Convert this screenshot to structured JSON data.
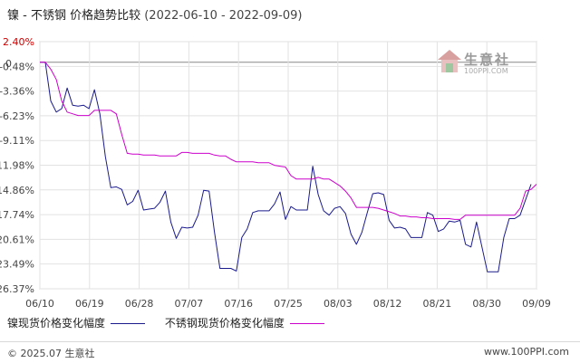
{
  "title": {
    "main": "镍 - 不锈钢 价格趋势比较",
    "range": "(2022-06-10 - 2022-09-09)"
  },
  "legend": {
    "series1": "镍现货价格变化幅度",
    "series2": "不锈钢现货价格变化幅度"
  },
  "watermark": {
    "text": "生意社",
    "url": "100PPI.COM"
  },
  "footer": {
    "left": "© 2025.07 生意社",
    "right": "www.100PPI.com"
  },
  "colors": {
    "nickel": "#1a1a8c",
    "stainless": "#cc00cc",
    "top_tick": "#cc0000",
    "grid": "#e2e2e2"
  },
  "chart_data": {
    "type": "line",
    "title": "镍 - 不锈钢 价格趋势比较",
    "zero_label": "0",
    "y_ticks": [
      "2.40%",
      "-0.48%",
      "-3.36%",
      "-6.23%",
      "-9.11%",
      "-11.98%",
      "-14.86%",
      "-17.74%",
      "-20.61%",
      "-23.49%",
      "-26.37%"
    ],
    "y_tick_values": [
      2.4,
      -0.48,
      -3.36,
      -6.23,
      -9.11,
      -11.98,
      -14.86,
      -17.74,
      -20.61,
      -23.49,
      -26.37
    ],
    "ylim": [
      -26.37,
      2.4
    ],
    "x_labels": [
      "06/10",
      "06/19",
      "06/28",
      "07/07",
      "07/16",
      "07/25",
      "08/03",
      "08/12",
      "08/21",
      "08/30",
      "09/09"
    ],
    "x_range_days": [
      0,
      91
    ],
    "grid": true,
    "legend_position": "bottom",
    "series": [
      {
        "name": "镍现货价格变化幅度",
        "points": [
          [
            0,
            0
          ],
          [
            1,
            0
          ],
          [
            2,
            -4.5
          ],
          [
            3,
            -5.8
          ],
          [
            4,
            -5.4
          ],
          [
            5,
            -3.0
          ],
          [
            6,
            -5.0
          ],
          [
            7,
            -5.1
          ],
          [
            8,
            -5.0
          ],
          [
            9,
            -5.4
          ],
          [
            10,
            -3.2
          ],
          [
            11,
            -6.0
          ],
          [
            12,
            -11.0
          ],
          [
            13,
            -14.6
          ],
          [
            14,
            -14.5
          ],
          [
            15,
            -14.8
          ],
          [
            16,
            -16.6
          ],
          [
            17,
            -16.2
          ],
          [
            18,
            -14.9
          ],
          [
            19,
            -17.2
          ],
          [
            20,
            -17.1
          ],
          [
            21,
            -17.0
          ],
          [
            22,
            -16.3
          ],
          [
            23,
            -15.0
          ],
          [
            24,
            -18.6
          ],
          [
            25,
            -20.5
          ],
          [
            26,
            -19.2
          ],
          [
            27,
            -19.3
          ],
          [
            28,
            -19.2
          ],
          [
            29,
            -17.8
          ],
          [
            30,
            -14.9
          ],
          [
            31,
            -15.0
          ],
          [
            32,
            -19.8
          ],
          [
            33,
            -24.0
          ],
          [
            34,
            -24.0
          ],
          [
            35,
            -24.0
          ],
          [
            36,
            -24.3
          ],
          [
            37,
            -20.4
          ],
          [
            38,
            -19.4
          ],
          [
            39,
            -17.5
          ],
          [
            40,
            -17.3
          ],
          [
            41,
            -17.3
          ],
          [
            42,
            -17.3
          ],
          [
            43,
            -16.5
          ],
          [
            44,
            -15.1
          ],
          [
            45,
            -18.3
          ],
          [
            46,
            -16.8
          ],
          [
            47,
            -17.2
          ],
          [
            48,
            -17.2
          ],
          [
            49,
            -17.2
          ],
          [
            50,
            -12.1
          ],
          [
            51,
            -15.4
          ],
          [
            52,
            -17.3
          ],
          [
            53,
            -17.8
          ],
          [
            54,
            -17.0
          ],
          [
            55,
            -16.8
          ],
          [
            56,
            -17.6
          ],
          [
            57,
            -20.0
          ],
          [
            58,
            -21.2
          ],
          [
            59,
            -19.8
          ],
          [
            60,
            -17.5
          ],
          [
            61,
            -15.3
          ],
          [
            62,
            -15.2
          ],
          [
            63,
            -15.4
          ],
          [
            64,
            -18.4
          ],
          [
            65,
            -19.3
          ],
          [
            66,
            -19.2
          ],
          [
            67,
            -19.4
          ],
          [
            68,
            -20.4
          ],
          [
            69,
            -20.4
          ],
          [
            70,
            -20.4
          ],
          [
            71,
            -17.5
          ],
          [
            72,
            -17.8
          ],
          [
            73,
            -19.7
          ],
          [
            74,
            -19.4
          ],
          [
            75,
            -18.5
          ],
          [
            76,
            -18.6
          ],
          [
            77,
            -18.4
          ],
          [
            78,
            -21.2
          ],
          [
            79,
            -21.5
          ],
          [
            80,
            -18.6
          ],
          [
            81,
            -21.5
          ],
          [
            82,
            -24.4
          ],
          [
            83,
            -24.4
          ],
          [
            84,
            -24.4
          ],
          [
            85,
            -20.4
          ],
          [
            86,
            -18.2
          ],
          [
            87,
            -18.2
          ],
          [
            88,
            -17.8
          ],
          [
            89,
            -16.0
          ],
          [
            90,
            -14.2
          ]
        ]
      },
      {
        "name": "不锈钢现货价格变化幅度",
        "points": [
          [
            0,
            0
          ],
          [
            1,
            0
          ],
          [
            2,
            -0.8
          ],
          [
            3,
            -2.0
          ],
          [
            4,
            -4.5
          ],
          [
            5,
            -5.8
          ],
          [
            6,
            -6.0
          ],
          [
            7,
            -6.2
          ],
          [
            8,
            -6.2
          ],
          [
            9,
            -6.2
          ],
          [
            10,
            -5.6
          ],
          [
            11,
            -5.6
          ],
          [
            12,
            -5.6
          ],
          [
            13,
            -5.6
          ],
          [
            14,
            -6.0
          ],
          [
            15,
            -8.4
          ],
          [
            16,
            -10.6
          ],
          [
            17,
            -10.7
          ],
          [
            18,
            -10.7
          ],
          [
            19,
            -10.8
          ],
          [
            20,
            -10.8
          ],
          [
            21,
            -10.8
          ],
          [
            22,
            -10.9
          ],
          [
            23,
            -10.9
          ],
          [
            24,
            -10.9
          ],
          [
            25,
            -10.9
          ],
          [
            26,
            -10.5
          ],
          [
            27,
            -10.5
          ],
          [
            28,
            -10.6
          ],
          [
            29,
            -10.6
          ],
          [
            30,
            -10.6
          ],
          [
            31,
            -10.6
          ],
          [
            32,
            -10.8
          ],
          [
            33,
            -10.9
          ],
          [
            34,
            -10.9
          ],
          [
            35,
            -11.3
          ],
          [
            36,
            -11.6
          ],
          [
            37,
            -11.6
          ],
          [
            38,
            -11.6
          ],
          [
            39,
            -11.6
          ],
          [
            40,
            -11.7
          ],
          [
            41,
            -11.7
          ],
          [
            42,
            -11.7
          ],
          [
            43,
            -12.0
          ],
          [
            44,
            -12.1
          ],
          [
            45,
            -12.2
          ],
          [
            46,
            -13.2
          ],
          [
            47,
            -13.6
          ],
          [
            48,
            -13.6
          ],
          [
            49,
            -13.6
          ],
          [
            50,
            -13.6
          ],
          [
            51,
            -13.4
          ],
          [
            52,
            -13.6
          ],
          [
            53,
            -13.6
          ],
          [
            54,
            -14.0
          ],
          [
            55,
            -14.4
          ],
          [
            56,
            -15.0
          ],
          [
            57,
            -15.8
          ],
          [
            58,
            -16.9
          ],
          [
            59,
            -16.9
          ],
          [
            60,
            -16.9
          ],
          [
            61,
            -16.9
          ],
          [
            62,
            -17.0
          ],
          [
            63,
            -17.2
          ],
          [
            64,
            -17.4
          ],
          [
            65,
            -17.6
          ],
          [
            66,
            -17.9
          ],
          [
            67,
            -17.9
          ],
          [
            68,
            -18.0
          ],
          [
            69,
            -18.0
          ],
          [
            70,
            -18.1
          ],
          [
            71,
            -18.1
          ],
          [
            72,
            -18.2
          ],
          [
            73,
            -18.2
          ],
          [
            74,
            -18.2
          ],
          [
            75,
            -18.2
          ],
          [
            76,
            -18.3
          ],
          [
            77,
            -18.3
          ],
          [
            78,
            -17.8
          ],
          [
            79,
            -17.8
          ],
          [
            80,
            -17.8
          ],
          [
            81,
            -17.8
          ],
          [
            82,
            -17.8
          ],
          [
            83,
            -17.8
          ],
          [
            84,
            -17.8
          ],
          [
            85,
            -17.8
          ],
          [
            86,
            -17.8
          ],
          [
            87,
            -17.8
          ],
          [
            88,
            -17.0
          ],
          [
            89,
            -15.0
          ],
          [
            90,
            -14.8
          ],
          [
            91,
            -14.2
          ]
        ]
      }
    ]
  }
}
